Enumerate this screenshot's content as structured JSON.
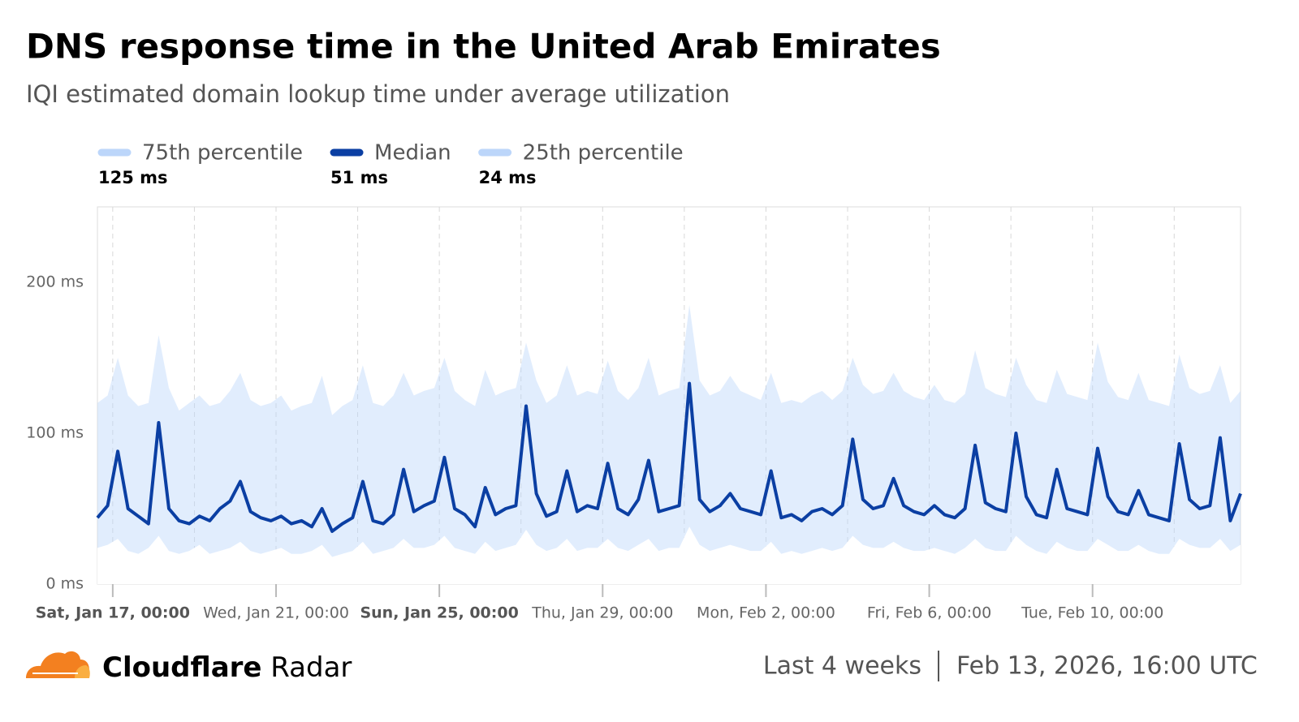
{
  "chart_data": {
    "type": "line",
    "title": "DNS response time in the United Arab Emirates",
    "subtitle": "IQI estimated domain lookup time under average utilization",
    "x": [
      "2026-01-16T15:00",
      "2026-01-16T21:00",
      "2026-01-17T03:00",
      "2026-01-17T09:00",
      "2026-01-17T15:00",
      "2026-01-17T21:00",
      "2026-01-18T03:00",
      "2026-01-18T09:00",
      "2026-01-18T15:00",
      "2026-01-18T21:00",
      "2026-01-19T03:00",
      "2026-01-19T09:00",
      "2026-01-19T15:00",
      "2026-01-19T21:00",
      "2026-01-20T03:00",
      "2026-01-20T09:00",
      "2026-01-20T15:00",
      "2026-01-20T21:00",
      "2026-01-21T03:00",
      "2026-01-21T09:00",
      "2026-01-21T15:00",
      "2026-01-21T21:00",
      "2026-01-22T03:00",
      "2026-01-22T09:00",
      "2026-01-22T15:00",
      "2026-01-22T21:00",
      "2026-01-23T03:00",
      "2026-01-23T09:00",
      "2026-01-23T15:00",
      "2026-01-23T21:00",
      "2026-01-24T03:00",
      "2026-01-24T09:00",
      "2026-01-24T15:00",
      "2026-01-24T21:00",
      "2026-01-25T03:00",
      "2026-01-25T09:00",
      "2026-01-25T15:00",
      "2026-01-25T21:00",
      "2026-01-26T03:00",
      "2026-01-26T09:00",
      "2026-01-26T15:00",
      "2026-01-26T21:00",
      "2026-01-27T03:00",
      "2026-01-27T09:00",
      "2026-01-27T15:00",
      "2026-01-27T21:00",
      "2026-01-28T03:00",
      "2026-01-28T09:00",
      "2026-01-28T15:00",
      "2026-01-28T21:00",
      "2026-01-29T03:00",
      "2026-01-29T09:00",
      "2026-01-29T15:00",
      "2026-01-29T21:00",
      "2026-01-30T03:00",
      "2026-01-30T09:00",
      "2026-01-30T15:00",
      "2026-01-30T21:00",
      "2026-01-31T03:00",
      "2026-01-31T09:00",
      "2026-01-31T15:00",
      "2026-01-31T21:00",
      "2026-02-01T03:00",
      "2026-02-01T09:00",
      "2026-02-01T15:00",
      "2026-02-01T21:00",
      "2026-02-02T03:00",
      "2026-02-02T09:00",
      "2026-02-02T15:00",
      "2026-02-02T21:00",
      "2026-02-03T03:00",
      "2026-02-03T09:00",
      "2026-02-03T15:00",
      "2026-02-03T21:00",
      "2026-02-04T03:00",
      "2026-02-04T09:00",
      "2026-02-04T15:00",
      "2026-02-04T21:00",
      "2026-02-05T03:00",
      "2026-02-05T09:00",
      "2026-02-05T15:00",
      "2026-02-05T21:00",
      "2026-02-06T03:00",
      "2026-02-06T09:00",
      "2026-02-06T15:00",
      "2026-02-06T21:00",
      "2026-02-07T03:00",
      "2026-02-07T09:00",
      "2026-02-07T15:00",
      "2026-02-07T21:00",
      "2026-02-08T03:00",
      "2026-02-08T09:00",
      "2026-02-08T15:00",
      "2026-02-08T21:00",
      "2026-02-09T03:00",
      "2026-02-09T09:00",
      "2026-02-09T15:00",
      "2026-02-09T21:00",
      "2026-02-10T03:00",
      "2026-02-10T09:00",
      "2026-02-10T15:00",
      "2026-02-10T21:00",
      "2026-02-11T03:00",
      "2026-02-11T09:00",
      "2026-02-11T15:00",
      "2026-02-11T21:00",
      "2026-02-12T03:00",
      "2026-02-12T09:00",
      "2026-02-12T15:00",
      "2026-02-12T21:00",
      "2026-02-13T03:00",
      "2026-02-13T09:00",
      "2026-02-13T15:00"
    ],
    "series": [
      {
        "name": "75th percentile",
        "summary": "125 ms",
        "color": "#bcd6fa",
        "fill": true,
        "values": [
          120,
          125,
          150,
          125,
          118,
          120,
          165,
          130,
          115,
          120,
          125,
          118,
          120,
          128,
          140,
          122,
          118,
          120,
          125,
          115,
          118,
          120,
          138,
          112,
          118,
          122,
          145,
          120,
          118,
          125,
          140,
          125,
          128,
          130,
          150,
          128,
          122,
          118,
          142,
          125,
          128,
          130,
          160,
          135,
          120,
          125,
          145,
          125,
          128,
          126,
          148,
          128,
          122,
          130,
          150,
          125,
          128,
          130,
          185,
          135,
          125,
          128,
          138,
          128,
          125,
          122,
          140,
          120,
          122,
          120,
          125,
          128,
          122,
          128,
          150,
          132,
          126,
          128,
          140,
          128,
          124,
          122,
          132,
          122,
          120,
          126,
          155,
          130,
          126,
          124,
          150,
          132,
          122,
          120,
          142,
          126,
          124,
          122,
          160,
          134,
          124,
          122,
          140,
          122,
          120,
          118,
          152,
          130,
          126,
          128,
          145,
          120,
          128
        ]
      },
      {
        "name": "Median",
        "summary": "51 ms",
        "color": "#0b3fa3",
        "fill": false,
        "values": [
          44,
          52,
          88,
          50,
          45,
          40,
          107,
          50,
          42,
          40,
          45,
          42,
          50,
          55,
          68,
          48,
          44,
          42,
          45,
          40,
          42,
          38,
          50,
          35,
          40,
          44,
          68,
          42,
          40,
          46,
          76,
          48,
          52,
          55,
          84,
          50,
          46,
          38,
          64,
          46,
          50,
          52,
          118,
          60,
          45,
          48,
          75,
          48,
          52,
          50,
          80,
          50,
          46,
          56,
          82,
          48,
          50,
          52,
          133,
          56,
          48,
          52,
          60,
          50,
          48,
          46,
          75,
          44,
          46,
          42,
          48,
          50,
          46,
          52,
          96,
          56,
          50,
          52,
          70,
          52,
          48,
          46,
          52,
          46,
          44,
          50,
          92,
          54,
          50,
          48,
          100,
          58,
          46,
          44,
          76,
          50,
          48,
          46,
          90,
          58,
          48,
          46,
          62,
          46,
          44,
          42,
          93,
          56,
          50,
          52,
          97,
          42,
          60
        ]
      },
      {
        "name": "25th percentile",
        "summary": "24 ms",
        "color": "#bcd6fa",
        "fill": true,
        "values": [
          24,
          26,
          30,
          22,
          20,
          24,
          32,
          22,
          20,
          22,
          26,
          20,
          22,
          24,
          28,
          22,
          20,
          22,
          24,
          20,
          20,
          22,
          26,
          18,
          20,
          22,
          28,
          20,
          22,
          24,
          30,
          24,
          24,
          26,
          32,
          24,
          22,
          20,
          28,
          22,
          24,
          26,
          36,
          26,
          22,
          24,
          30,
          22,
          24,
          24,
          30,
          24,
          22,
          26,
          30,
          22,
          24,
          24,
          38,
          26,
          22,
          24,
          26,
          24,
          22,
          22,
          28,
          20,
          22,
          20,
          22,
          24,
          22,
          24,
          32,
          26,
          24,
          24,
          28,
          24,
          22,
          22,
          24,
          22,
          20,
          24,
          30,
          24,
          22,
          22,
          32,
          26,
          22,
          20,
          28,
          24,
          22,
          22,
          30,
          26,
          22,
          22,
          26,
          22,
          20,
          20,
          30,
          26,
          24,
          24,
          30,
          22,
          26
        ]
      }
    ],
    "xlim": [
      "2026-01-16T15:00",
      "2026-02-13T15:00"
    ],
    "xticks": [
      {
        "value": "2026-01-17T00:00",
        "label": "Sat, Jan 17, 00:00"
      },
      {
        "value": "2026-01-19T00:00",
        "label": null
      },
      {
        "value": "2026-01-21T00:00",
        "label": "Wed, Jan 21, 00:00"
      },
      {
        "value": "2026-01-23T00:00",
        "label": null
      },
      {
        "value": "2026-01-25T00:00",
        "label": "Sun, Jan 25, 00:00"
      },
      {
        "value": "2026-01-27T00:00",
        "label": null
      },
      {
        "value": "2026-01-29T00:00",
        "label": "Thu, Jan 29, 00:00"
      },
      {
        "value": "2026-01-31T00:00",
        "label": null
      },
      {
        "value": "2026-02-02T00:00",
        "label": "Mon, Feb 2, 00:00"
      },
      {
        "value": "2026-02-04T00:00",
        "label": null
      },
      {
        "value": "2026-02-06T00:00",
        "label": "Fri, Feb 6, 00:00"
      },
      {
        "value": "2026-02-08T00:00",
        "label": null
      },
      {
        "value": "2026-02-10T00:00",
        "label": "Tue, Feb 10, 00:00"
      },
      {
        "value": "2026-02-12T00:00",
        "label": null
      }
    ],
    "ylim": [
      0,
      250
    ],
    "yticks": [
      {
        "value": 0,
        "label": "0 ms"
      },
      {
        "value": 100,
        "label": "100 ms"
      },
      {
        "value": 200,
        "label": "200 ms"
      }
    ],
    "grid": true
  },
  "footer": {
    "brand": "Cloudflare",
    "product": "Radar",
    "range": "Last 4 weeks",
    "timestamp": "Feb 13, 2026, 16:00 UTC"
  }
}
